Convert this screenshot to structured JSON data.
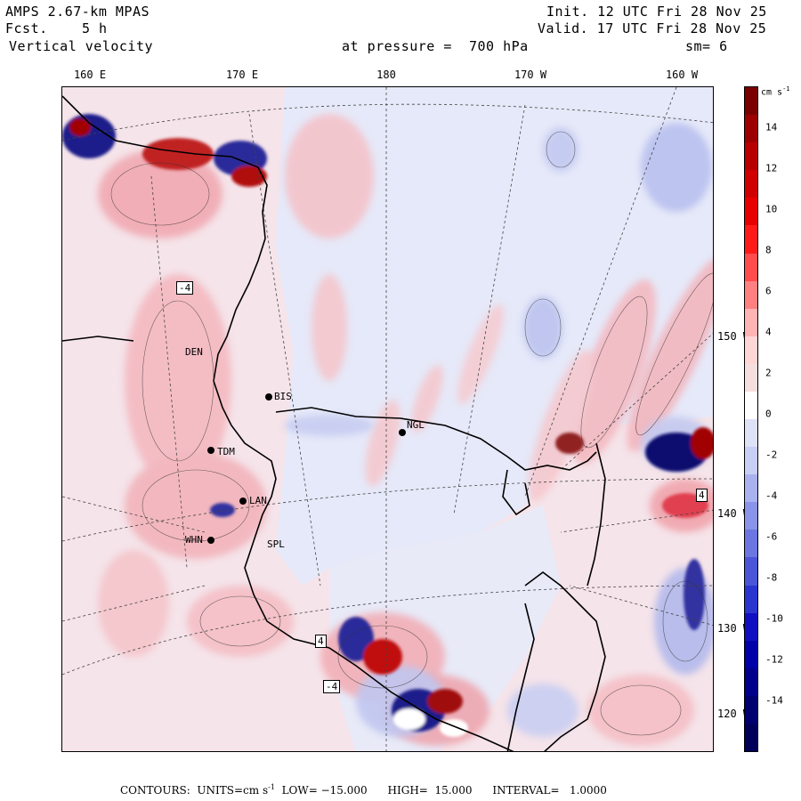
{
  "header": {
    "model": "AMPS 2.67-km MPAS",
    "forecast_label": "Fcst.",
    "forecast_value": "5 h",
    "field": "Vertical velocity",
    "init": "Init. 12 UTC Fri 28 Nov 25",
    "valid": "Valid. 17 UTC Fri 28 Nov 25",
    "pressure": "at pressure =  700 hPa",
    "smoothing": "sm= 6"
  },
  "lon_labels": [
    "160 E",
    "170 E",
    "180",
    "170 W",
    "160 W"
  ],
  "lat_labels": [
    "150 W",
    "140 W",
    "130 W",
    "120 W"
  ],
  "stations": [
    "BIS",
    "NGL",
    "TDM",
    "LAN",
    "WHN",
    "DEN",
    "SPL"
  ],
  "box_labels": [
    "-4",
    "-4",
    "4",
    "4"
  ],
  "colorbar": {
    "units": "cm s",
    "units_exp": "-1",
    "ticks": [
      "14",
      "12",
      "10",
      "8",
      "6",
      "4",
      "2",
      "0",
      "-2",
      "-4",
      "-6",
      "-8",
      "-10",
      "-12",
      "-14"
    ],
    "colors": [
      "#7a0000",
      "#9c0000",
      "#b80000",
      "#d00000",
      "#e80000",
      "#ff1a1a",
      "#ff4d4d",
      "#ff8080",
      "#ffb3b3",
      "#ffd6d6",
      "#f6dede",
      "#ffffff",
      "#dde2f7",
      "#c8cff5",
      "#a9b2ee",
      "#8a94e8",
      "#6b76e0",
      "#4a55d8",
      "#2a35d0",
      "#1010c0",
      "#0000a8",
      "#00008a",
      "#000070",
      "#00005a"
    ]
  },
  "footer": {
    "contours": "CONTOURS:",
    "units": "UNITS=cm s",
    "units_exp": "-1",
    "low": "LOW= −15.000",
    "high": "HIGH=  15.000",
    "interval": "INTERVAL=   1.0000"
  }
}
